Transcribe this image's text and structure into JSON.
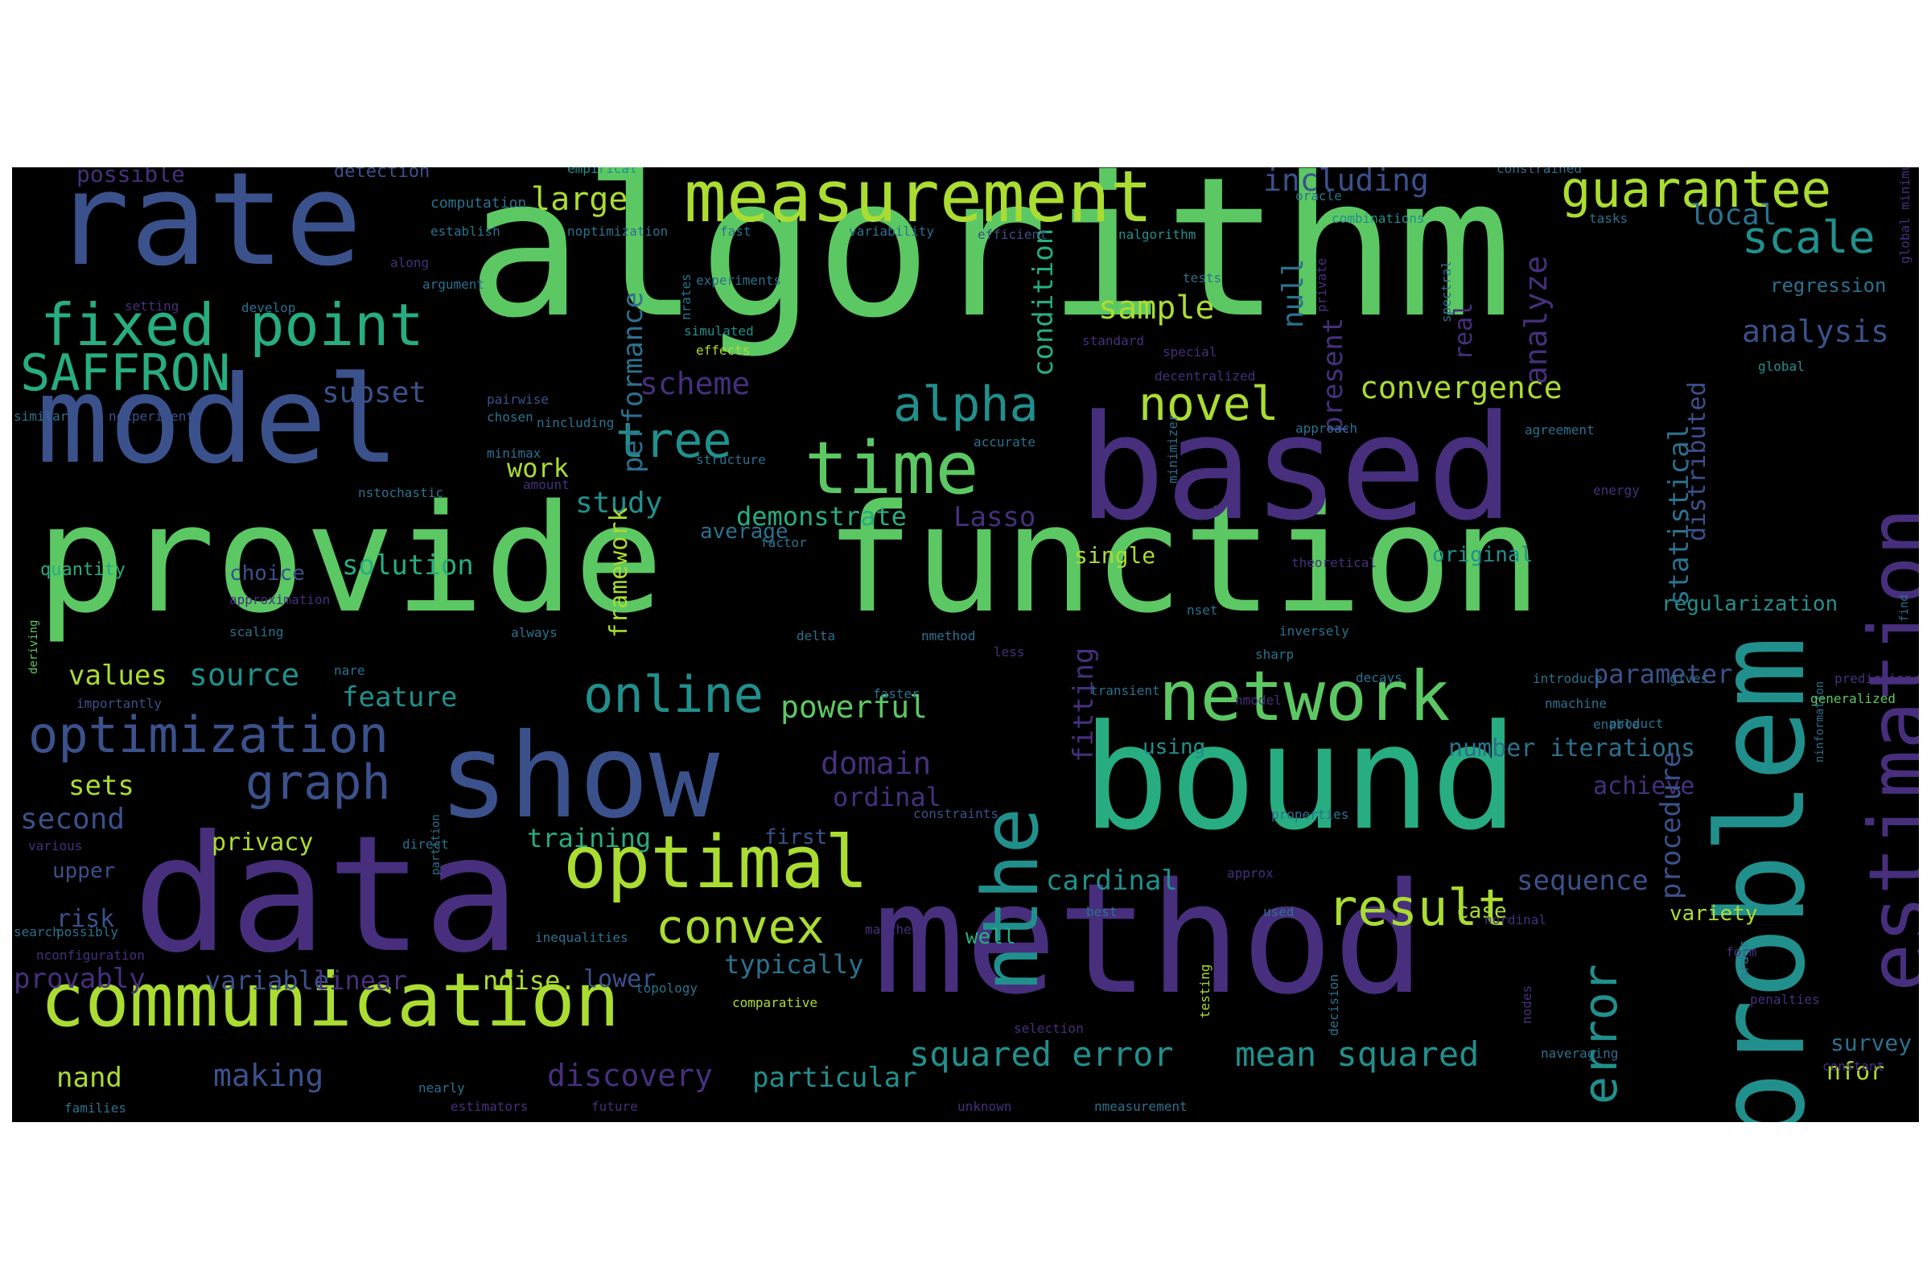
{
  "palette": {
    "background": "#000000",
    "viridis": [
      "#440154",
      "#472f7d",
      "#3b518b",
      "#2c718e",
      "#21908d",
      "#27ad81",
      "#5cc863",
      "#aadc32",
      "#fde725"
    ]
  },
  "words": [
    {
      "text": "algorithm",
      "color": "#5cc863"
    },
    {
      "text": "provide",
      "color": "#5cc863"
    },
    {
      "text": "function",
      "color": "#5cc863"
    },
    {
      "text": "method",
      "color": "#472f7d"
    },
    {
      "text": "based",
      "color": "#472f7d"
    },
    {
      "text": "problem",
      "color": "#21908d"
    },
    {
      "text": "data",
      "color": "#472f7d"
    },
    {
      "text": "bound",
      "color": "#27ad81"
    },
    {
      "text": "rate",
      "color": "#3b518b"
    },
    {
      "text": "model",
      "color": "#3b518b"
    },
    {
      "text": "show",
      "color": "#3b518b"
    },
    {
      "text": "communication",
      "color": "#aadc32"
    },
    {
      "text": "estimation",
      "color": "#472f7d"
    },
    {
      "text": "nthe",
      "color": "#21908d"
    },
    {
      "text": "measurement",
      "color": "#aadc32"
    },
    {
      "text": "network",
      "color": "#5cc863"
    },
    {
      "text": "optimal",
      "color": "#aadc32"
    },
    {
      "text": "time",
      "color": "#5cc863"
    },
    {
      "text": "fixed point",
      "color": "#27ad81"
    },
    {
      "text": "guarantee",
      "color": "#aadc32"
    },
    {
      "text": "optimization",
      "color": "#3b518b"
    },
    {
      "text": "result",
      "color": "#aadc32"
    },
    {
      "text": "online",
      "color": "#21908d"
    },
    {
      "text": "SAFFRON",
      "color": "#27ad81"
    },
    {
      "text": "graph",
      "color": "#3b518b"
    },
    {
      "text": "convex",
      "color": "#aadc32"
    },
    {
      "text": "alpha",
      "color": "#21908d"
    },
    {
      "text": "scale",
      "color": "#21908d"
    },
    {
      "text": "tree",
      "color": "#21908d"
    },
    {
      "text": "novel",
      "color": "#aadc32"
    },
    {
      "text": "error",
      "color": "#21908d"
    },
    {
      "text": "squared error",
      "color": "#21908d"
    },
    {
      "text": "mean squared",
      "color": "#21908d"
    },
    {
      "text": "convergence",
      "color": "#aadc32"
    },
    {
      "text": "analysis",
      "color": "#3b518b"
    },
    {
      "text": "sample",
      "color": "#aadc32"
    },
    {
      "text": "large",
      "color": "#aadc32"
    },
    {
      "text": "including",
      "color": "#3b518b"
    },
    {
      "text": "local",
      "color": "#2c718e"
    },
    {
      "text": "regression",
      "color": "#2c718e"
    },
    {
      "text": "scheme",
      "color": "#472f7d"
    },
    {
      "text": "subset",
      "color": "#3b518b"
    },
    {
      "text": "work",
      "color": "#aadc32"
    },
    {
      "text": "study",
      "color": "#21908d"
    },
    {
      "text": "demonstrate",
      "color": "#27ad81"
    },
    {
      "text": "Lasso",
      "color": "#472f7d"
    },
    {
      "text": "solution",
      "color": "#27ad81"
    },
    {
      "text": "quantity",
      "color": "#27ad81"
    },
    {
      "text": "choice",
      "color": "#3b518b"
    },
    {
      "text": "average",
      "color": "#2c718e"
    },
    {
      "text": "single",
      "color": "#aadc32"
    },
    {
      "text": "original",
      "color": "#21908d"
    },
    {
      "text": "regularization",
      "color": "#21908d"
    },
    {
      "text": "values",
      "color": "#aadc32"
    },
    {
      "text": "source",
      "color": "#21908d"
    },
    {
      "text": "feature",
      "color": "#21908d"
    },
    {
      "text": "powerful",
      "color": "#5cc863"
    },
    {
      "text": "parameter",
      "color": "#3b518b"
    },
    {
      "text": "using",
      "color": "#21908d"
    },
    {
      "text": "number iterations",
      "color": "#2c718e"
    },
    {
      "text": "achieve",
      "color": "#472f7d"
    },
    {
      "text": "sets",
      "color": "#aadc32"
    },
    {
      "text": "domain",
      "color": "#472f7d"
    },
    {
      "text": "ordinal",
      "color": "#472f7d"
    },
    {
      "text": "second",
      "color": "#3b518b"
    },
    {
      "text": "privacy",
      "color": "#aadc32"
    },
    {
      "text": "training",
      "color": "#27ad81"
    },
    {
      "text": "first",
      "color": "#3b518b"
    },
    {
      "text": "cardinal",
      "color": "#21908d"
    },
    {
      "text": "sequence",
      "color": "#3b518b"
    },
    {
      "text": "case",
      "color": "#aadc32"
    },
    {
      "text": "variety",
      "color": "#aadc32"
    },
    {
      "text": "upper",
      "color": "#3b518b"
    },
    {
      "text": "risk",
      "color": "#3b518b"
    },
    {
      "text": "well",
      "color": "#27ad81"
    },
    {
      "text": "typically",
      "color": "#2c718e"
    },
    {
      "text": "provably",
      "color": "#472f7d"
    },
    {
      "text": "variable",
      "color": "#3b518b"
    },
    {
      "text": "linear",
      "color": "#472f7d"
    },
    {
      "text": "noise.",
      "color": "#aadc32"
    },
    {
      "text": "lower",
      "color": "#3b518b"
    },
    {
      "text": "survey",
      "color": "#2c718e"
    },
    {
      "text": "nfor",
      "color": "#aadc32"
    },
    {
      "text": "nand",
      "color": "#aadc32"
    },
    {
      "text": "making",
      "color": "#3b518b"
    },
    {
      "text": "discovery",
      "color": "#472f7d"
    },
    {
      "text": "particular",
      "color": "#21908d"
    },
    {
      "text": "possible",
      "color": "#472f7d"
    },
    {
      "text": "detection",
      "color": "#3b518b"
    },
    {
      "text": "performance",
      "color": "#2c718e"
    },
    {
      "text": "condition",
      "color": "#27ad81"
    },
    {
      "text": "null",
      "color": "#2c718e"
    },
    {
      "text": "present",
      "color": "#472f7d"
    },
    {
      "text": "analyze",
      "color": "#472f7d"
    },
    {
      "text": "real",
      "color": "#472f7d"
    },
    {
      "text": "statistical",
      "color": "#2c718e"
    },
    {
      "text": "distributed",
      "color": "#3b518b"
    },
    {
      "text": "framework",
      "color": "#aadc32"
    },
    {
      "text": "fitting",
      "color": "#472f7d"
    },
    {
      "text": "procedure",
      "color": "#3b518b"
    },
    {
      "text": "empirical",
      "color": "#21908d"
    },
    {
      "text": "computation",
      "color": "#2c718e"
    },
    {
      "text": "oracle",
      "color": "#2c718e"
    },
    {
      "text": "constrained",
      "color": "#2c718e"
    },
    {
      "text": "establish",
      "color": "#2c718e"
    },
    {
      "text": "noptimization",
      "color": "#2c718e"
    },
    {
      "text": "fast",
      "color": "#2c718e"
    },
    {
      "text": "variability",
      "color": "#2c718e"
    },
    {
      "text": "efficient",
      "color": "#3b518b"
    },
    {
      "text": "nalgorithm",
      "color": "#21908d"
    },
    {
      "text": "combinations",
      "color": "#21908d"
    },
    {
      "text": "tasks",
      "color": "#2c718e"
    },
    {
      "text": "global minimum",
      "color": "#472f7d"
    },
    {
      "text": "along",
      "color": "#472f7d"
    },
    {
      "text": "argument",
      "color": "#2c718e"
    },
    {
      "text": "experiments",
      "color": "#2c718e"
    },
    {
      "text": "nrates",
      "color": "#2c718e"
    },
    {
      "text": "setting",
      "color": "#472f7d"
    },
    {
      "text": "develop",
      "color": "#2c718e"
    },
    {
      "text": "simulated",
      "color": "#21908d"
    },
    {
      "text": "effects",
      "color": "#aadc32"
    },
    {
      "text": "tests",
      "color": "#2c718e"
    },
    {
      "text": "spectral",
      "color": "#2c718e"
    },
    {
      "text": "private",
      "color": "#472f7d"
    },
    {
      "text": "standard",
      "color": "#472f7d"
    },
    {
      "text": "special",
      "color": "#472f7d"
    },
    {
      "text": "global",
      "color": "#21908d"
    },
    {
      "text": "decentralized",
      "color": "#472f7d"
    },
    {
      "text": "similar",
      "color": "#2c718e"
    },
    {
      "text": "nexperiments",
      "color": "#3b518b"
    },
    {
      "text": "pairwise",
      "color": "#3b518b"
    },
    {
      "text": "chosen",
      "color": "#2c718e"
    },
    {
      "text": "nincluding",
      "color": "#2c718e"
    },
    {
      "text": "approach",
      "color": "#2c718e"
    },
    {
      "text": "agreement",
      "color": "#2c718e"
    },
    {
      "text": "accurate",
      "color": "#2c718e"
    },
    {
      "text": "structure",
      "color": "#2c718e"
    },
    {
      "text": "minimax",
      "color": "#2c718e"
    },
    {
      "text": "amount",
      "color": "#472f7d"
    },
    {
      "text": "nstochastic",
      "color": "#2c718e"
    },
    {
      "text": "minimizer",
      "color": "#2c718e"
    },
    {
      "text": "energy",
      "color": "#472f7d"
    },
    {
      "text": "factor",
      "color": "#2c718e"
    },
    {
      "text": "theoretical",
      "color": "#472f7d"
    },
    {
      "text": "find",
      "color": "#2c718e"
    },
    {
      "text": "deriving",
      "color": "#5cc863"
    },
    {
      "text": "approximation",
      "color": "#472f7d"
    },
    {
      "text": "scaling",
      "color": "#2c718e"
    },
    {
      "text": "always",
      "color": "#2c718e"
    },
    {
      "text": "delta",
      "color": "#2c718e"
    },
    {
      "text": "nmethod",
      "color": "#2c718e"
    },
    {
      "text": "less",
      "color": "#472f7d"
    },
    {
      "text": "nset",
      "color": "#2c718e"
    },
    {
      "text": "inversely",
      "color": "#2c718e"
    },
    {
      "text": "sharp",
      "color": "#2c718e"
    },
    {
      "text": "nare",
      "color": "#2c718e"
    },
    {
      "text": "importantly",
      "color": "#3b518b"
    },
    {
      "text": "nmodel",
      "color": "#472f7d"
    },
    {
      "text": "faster",
      "color": "#2c718e"
    },
    {
      "text": "transient",
      "color": "#2c718e"
    },
    {
      "text": "decays",
      "color": "#2c718e"
    },
    {
      "text": "introduce",
      "color": "#2c718e"
    },
    {
      "text": "gives",
      "color": "#2c718e"
    },
    {
      "text": "nmachine",
      "color": "#2c718e"
    },
    {
      "text": "product",
      "color": "#2c718e"
    },
    {
      "text": "prediction",
      "color": "#472f7d"
    },
    {
      "text": "generalized",
      "color": "#5cc863"
    },
    {
      "text": "enable",
      "color": "#2c718e"
    },
    {
      "text": "ninformation",
      "color": "#2c718e"
    },
    {
      "text": "constraints",
      "color": "#3b518b"
    },
    {
      "text": "properties",
      "color": "#2c718e"
    },
    {
      "text": "various",
      "color": "#472f7d"
    },
    {
      "text": "direct",
      "color": "#2c718e"
    },
    {
      "text": "partition",
      "color": "#2c718e"
    },
    {
      "text": "approx",
      "color": "#472f7d"
    },
    {
      "text": "best",
      "color": "#2c718e"
    },
    {
      "text": "used",
      "color": "#2c718e"
    },
    {
      "text": "search",
      "color": "#2c718e"
    },
    {
      "text": "possibly",
      "color": "#2c718e"
    },
    {
      "text": "inequalities",
      "color": "#2c718e"
    },
    {
      "text": "matches",
      "color": "#472f7d"
    },
    {
      "text": "testing",
      "color": "#aadc32"
    },
    {
      "text": "nordinal",
      "color": "#472f7d"
    },
    {
      "text": "form",
      "color": "#472f7d"
    },
    {
      "text": "order",
      "color": "#2c718e"
    },
    {
      "text": "nconfiguration",
      "color": "#472f7d"
    },
    {
      "text": "topology",
      "color": "#2c718e"
    },
    {
      "text": "comparative",
      "color": "#aadc32"
    },
    {
      "text": "penalties",
      "color": "#472f7d"
    },
    {
      "text": "selection",
      "color": "#472f7d"
    },
    {
      "text": "decision",
      "color": "#2c718e"
    },
    {
      "text": "nodes",
      "color": "#472f7d"
    },
    {
      "text": "naveraging",
      "color": "#2c718e"
    },
    {
      "text": "constant",
      "color": "#472f7d"
    },
    {
      "text": "nearly",
      "color": "#2c718e"
    },
    {
      "text": "families",
      "color": "#2c718e"
    },
    {
      "text": "estimators",
      "color": "#472f7d"
    },
    {
      "text": "future",
      "color": "#472f7d"
    },
    {
      "text": "unknown",
      "color": "#472f7d"
    },
    {
      "text": "nmeasurement",
      "color": "#2c718e"
    }
  ]
}
